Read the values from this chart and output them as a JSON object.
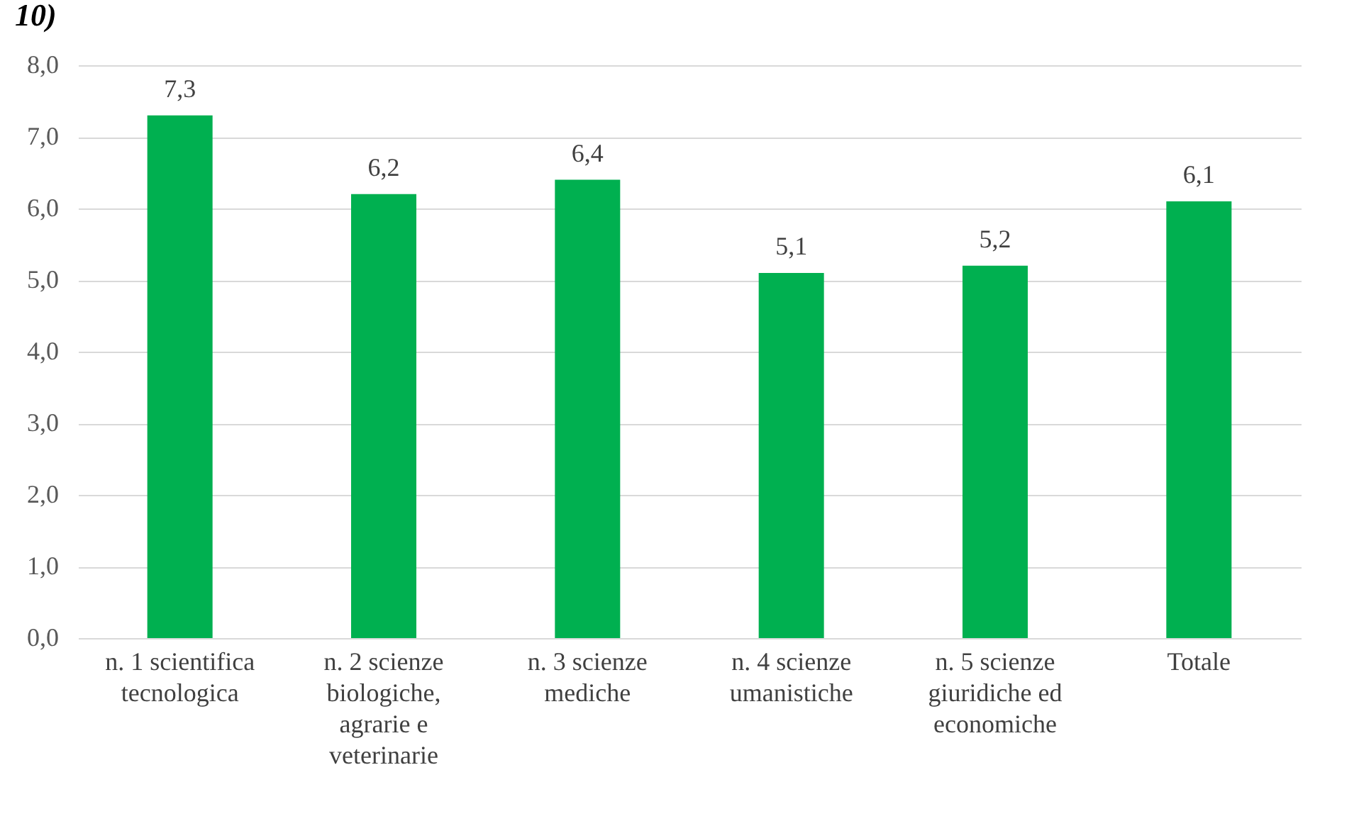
{
  "chart_data": {
    "type": "bar",
    "title": "10)",
    "categories": [
      "n. 1 scientifica tecnologica",
      "n. 2 scienze biologiche, agrarie e veterinarie",
      "n. 3 scienze mediche",
      "n. 4 scienze umanistiche",
      "n. 5 scienze giuridiche ed economiche",
      "Totale"
    ],
    "values": [
      7.3,
      6.2,
      6.4,
      5.1,
      5.2,
      6.1
    ],
    "value_labels": [
      "7,3",
      "6,2",
      "6,4",
      "5,1",
      "5,2",
      "6,1"
    ],
    "color": "#00b050",
    "ylim": [
      0,
      8
    ],
    "yticks": [
      {
        "value": 0,
        "label": "0,0"
      },
      {
        "value": 1,
        "label": "1,0"
      },
      {
        "value": 2,
        "label": "2,0"
      },
      {
        "value": 3,
        "label": "3,0"
      },
      {
        "value": 4,
        "label": "4,0"
      },
      {
        "value": 5,
        "label": "5,0"
      },
      {
        "value": 6,
        "label": "6,0"
      },
      {
        "value": 7,
        "label": "7,0"
      },
      {
        "value": 8,
        "label": "8,0"
      }
    ],
    "grid": "y"
  }
}
